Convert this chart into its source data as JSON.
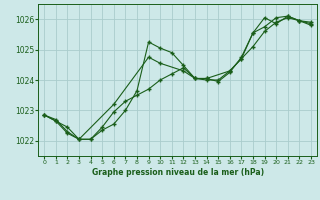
{
  "title": "Graphe pression niveau de la mer (hPa)",
  "bg_color": "#cde8e8",
  "grid_color": "#aacccc",
  "line_color": "#1a5e1a",
  "ylim": [
    1021.5,
    1026.5
  ],
  "xlim": [
    -0.5,
    23.5
  ],
  "yticks": [
    1022,
    1023,
    1024,
    1025,
    1026
  ],
  "xticks": [
    0,
    1,
    2,
    3,
    4,
    5,
    6,
    7,
    8,
    9,
    10,
    11,
    12,
    13,
    14,
    15,
    16,
    17,
    18,
    19,
    20,
    21,
    22,
    23
  ],
  "series1_x": [
    0,
    1,
    2,
    3,
    4,
    5,
    6,
    7,
    8,
    9,
    10,
    11,
    12,
    13,
    14,
    15,
    16,
    17,
    18,
    19,
    20,
    21,
    22,
    23
  ],
  "series1_y": [
    1022.85,
    1022.7,
    1022.3,
    1022.05,
    1022.05,
    1022.35,
    1022.55,
    1023.0,
    1023.65,
    1025.25,
    1025.05,
    1024.9,
    1024.48,
    1024.05,
    1024.05,
    1023.95,
    1024.25,
    1024.75,
    1025.55,
    1026.05,
    1025.85,
    1026.1,
    1025.95,
    1025.9
  ],
  "series2_x": [
    0,
    1,
    2,
    3,
    4,
    5,
    6,
    7,
    8,
    9,
    10,
    11,
    12,
    13,
    14,
    15,
    16,
    17,
    18,
    19,
    20,
    21,
    22,
    23
  ],
  "series2_y": [
    1022.85,
    1022.65,
    1022.45,
    1022.05,
    1022.05,
    1022.45,
    1022.95,
    1023.3,
    1023.5,
    1023.7,
    1024.0,
    1024.2,
    1024.4,
    1024.05,
    1024.0,
    1024.0,
    1024.3,
    1024.7,
    1025.1,
    1025.6,
    1025.9,
    1026.05,
    1025.95,
    1025.8
  ],
  "series3_x": [
    0,
    1,
    2,
    3,
    6,
    9,
    10,
    12,
    13,
    14,
    16,
    17,
    18,
    19,
    20,
    21,
    22,
    23
  ],
  "series3_y": [
    1022.85,
    1022.65,
    1022.25,
    1022.05,
    1023.2,
    1024.75,
    1024.55,
    1024.3,
    1024.05,
    1024.05,
    1024.3,
    1024.7,
    1025.55,
    1025.75,
    1026.05,
    1026.1,
    1025.95,
    1025.85
  ]
}
